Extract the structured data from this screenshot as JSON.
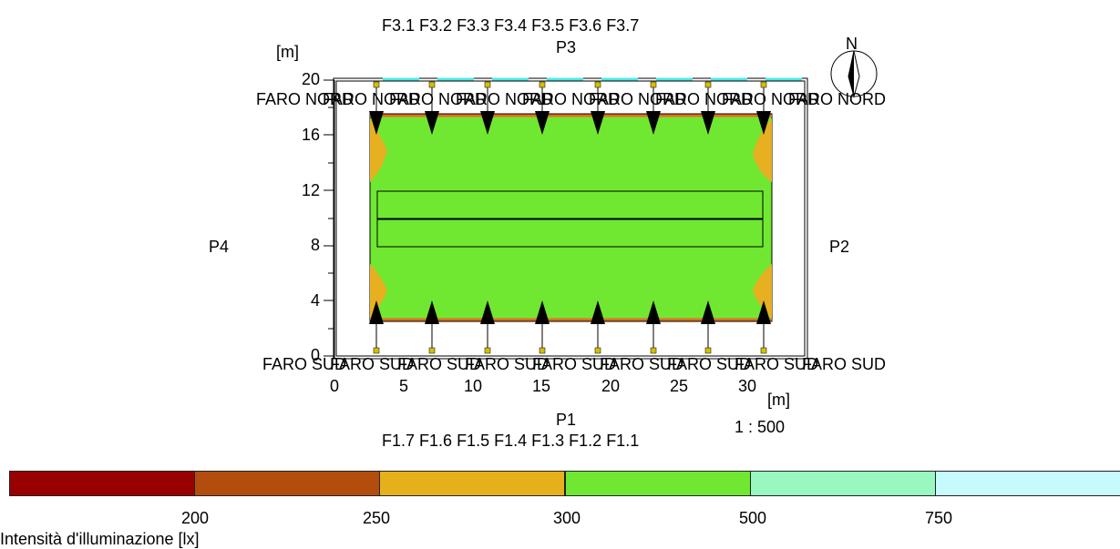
{
  "plan": {
    "axis_unit": "[m]",
    "scale": "1 : 500",
    "north": "N",
    "sides": {
      "top": "P3",
      "right": "P2",
      "bottom": "P1",
      "left": "P4"
    },
    "top_fixtures": [
      "F3.1",
      "F3.2",
      "F3.3",
      "F3.4",
      "F3.5",
      "F3.6",
      "F3.7"
    ],
    "bottom_fixtures": [
      "F1.7",
      "F1.6",
      "F1.5",
      "F1.4",
      "F1.3",
      "F1.2",
      "F1.1"
    ],
    "x_ticks": [
      "0",
      "5",
      "10",
      "15",
      "20",
      "25",
      "30"
    ],
    "y_ticks": [
      "0",
      "4",
      "8",
      "12",
      "16",
      "20"
    ],
    "faro_nord": [
      "FARO NORD",
      "FARO NORD",
      "FARO NORD",
      "FARO NORD",
      "FARO NORD",
      "FARO NORD",
      "FARO NORD",
      "FARO NORD",
      "FARO NORD"
    ],
    "faro_sud": [
      "FARO SUD",
      "FARO SUD",
      "FARO SUD",
      "FARO SUD",
      "FARO SUD",
      "FARO SUD",
      "FARO SUD",
      "FARO SUD",
      "FARO SUD"
    ],
    "colors": {
      "field": "#70e832",
      "edge": "#e6b020",
      "hot": "#e07020",
      "marker": "#d4c000",
      "cyan": "#4ee8e8"
    }
  },
  "legend": {
    "title": "Intensità d'illuminazione [lx]",
    "values": [
      "200",
      "250",
      "300",
      "500",
      "750"
    ],
    "colors": [
      "#990000",
      "#b34d0d",
      "#e6b01a",
      "#70e832",
      "#99f8c0",
      "#c6fafc"
    ]
  }
}
